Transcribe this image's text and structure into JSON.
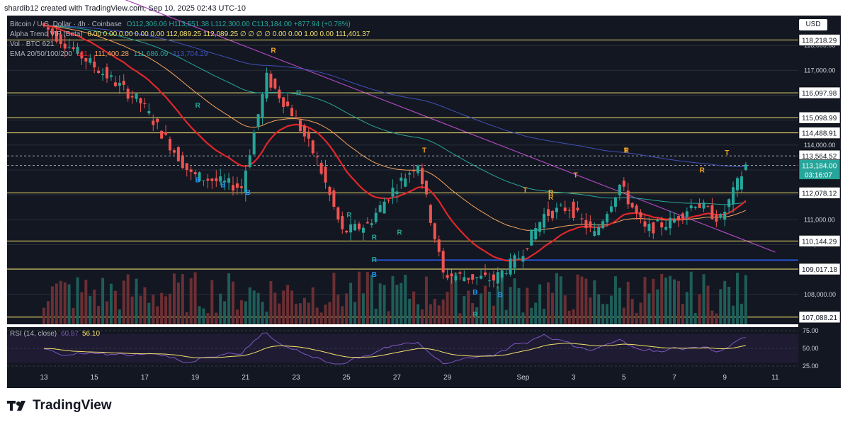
{
  "header": {
    "attribution": "shardib12 created with TradingView.com, Sep 10, 2025 02:43 UTC-10",
    "symbol": "Bitcoin / U.S. Dollar · 4h · Coinbase",
    "ohlc": "O112,306.06  H113,551.38  L112,300.00  C113,184.00  +877.94 (+0.78%)",
    "indicator1": "Alpha Trend VIP (Beta)",
    "indicator1_values": "0.00  0.00  0.00  0.00  0.00  112,089.25  112,089.25  ∅ ∅ ∅ ∅  0.00  0.00  1.00  0.00  111,401.37",
    "volume": "Vol · BTC  621",
    "ema": "EMA 20/50/100/200",
    "ema_values": [
      "111,",
      "111,400.28",
      "111,686.09",
      "113,704.29"
    ]
  },
  "currency_button": "USD",
  "brand": "TradingView",
  "colors": {
    "background": "#131722",
    "frame": "#ffffff",
    "up": "#26a69a",
    "down": "#ef5350",
    "level_line": "#f5e36b",
    "trendline": "#ab47bc",
    "support_blue": "#2962ff",
    "ema20": "#e0272b",
    "ema50": "#f7a35c",
    "ema100": "#26a69a",
    "ema200": "#3f51b5",
    "rsi": "#7e57c2",
    "rsi_ma": "#f5e36b",
    "alpha_trend_up": "#4caf50",
    "alpha_trend_down": "#ff9800"
  },
  "chart_data": {
    "type": "candlestick",
    "timeframe": "4h",
    "price_axis": {
      "ylim": [
        106800,
        119200
      ],
      "ticks": [
        108000,
        109000,
        110000,
        111000,
        112000,
        113000,
        114000,
        115000,
        116000,
        117000,
        118000
      ],
      "tick_labels": [
        "108,000.00",
        "109,000.00",
        "110,000.00",
        "111,000.00",
        "112,000.00",
        "113,000.00",
        "114,000.00",
        "115,000.00",
        "116,000.00",
        "117,000.00",
        "118,000.00"
      ]
    },
    "x_axis": {
      "tick_labels": [
        "13",
        "15",
        "17",
        "19",
        "21",
        "23",
        "25",
        "27",
        "29",
        "Sep",
        "3",
        "5",
        "7",
        "9",
        "11"
      ]
    },
    "horizontal_levels": [
      {
        "price": 118218.29,
        "label": "118,218.29"
      },
      {
        "price": 116097.98,
        "label": "116,097.98"
      },
      {
        "price": 115098.99,
        "label": "115,098.99"
      },
      {
        "price": 114488.91,
        "label": "114,488.91"
      },
      {
        "price": 112078.12,
        "label": "112,078.12"
      },
      {
        "price": 110144.29,
        "label": "110,144.29"
      },
      {
        "price": 109017.18,
        "label": "109,017.18"
      },
      {
        "price": 107088.21,
        "label": "107,088.21"
      }
    ],
    "price_labels": [
      {
        "price": 113564.52,
        "label": "113,564.52"
      },
      {
        "price": 113184.0,
        "label": "113,184.00"
      }
    ],
    "countdown": "03:16:07",
    "support_line": {
      "price": 109380
    },
    "trendline": {
      "from": {
        "x": "Aug 12",
        "price": 121500
      },
      "to": {
        "x": "Sep 11",
        "price": 109700
      }
    },
    "key_points": [
      {
        "x": "Aug 13",
        "price": 118900
      },
      {
        "x": "Aug 15",
        "price": 117300
      },
      {
        "x": "Aug 17",
        "price": 115700
      },
      {
        "x": "Aug 19",
        "price": 112800
      },
      {
        "x": "Aug 21",
        "price": 112300
      },
      {
        "x": "Aug 22",
        "price": 116700
      },
      {
        "x": "Aug 23",
        "price": 115300
      },
      {
        "x": "Aug 24",
        "price": 113400
      },
      {
        "x": "Aug 25",
        "price": 110500
      },
      {
        "x": "Aug 26",
        "price": 110800
      },
      {
        "x": "Aug 27",
        "price": 112200
      },
      {
        "x": "Aug 28",
        "price": 113300
      },
      {
        "x": "Aug 29",
        "price": 108800
      },
      {
        "x": "Aug 31",
        "price": 108600
      },
      {
        "x": "Sep 1",
        "price": 109500
      },
      {
        "x": "Sep 2",
        "price": 111200
      },
      {
        "x": "Sep 3",
        "price": 111500
      },
      {
        "x": "Sep 4",
        "price": 110400
      },
      {
        "x": "Sep 5",
        "price": 112400
      },
      {
        "x": "Sep 6",
        "price": 110600
      },
      {
        "x": "Sep 7",
        "price": 110900
      },
      {
        "x": "Sep 8",
        "price": 111700
      },
      {
        "x": "Sep 9",
        "price": 111000
      },
      {
        "x": "Sep 10",
        "price": 113184
      }
    ],
    "signal_markers": [
      {
        "text": "R",
        "color": "orange",
        "x": "Aug 22",
        "price": 117700
      },
      {
        "text": "T",
        "color": "orange",
        "x": "Aug 28",
        "price": 113700
      },
      {
        "text": "T",
        "color": "orange",
        "x": "Sep 1",
        "price": 112100
      },
      {
        "text": "R",
        "color": "orange",
        "x": "Sep 2",
        "price": 112000
      },
      {
        "text": "T",
        "color": "orange",
        "x": "Sep 3",
        "price": 112700
      },
      {
        "text": "T",
        "color": "orange",
        "x": "Sep 5",
        "price": 113700
      },
      {
        "text": "R",
        "color": "orange",
        "x": "Sep 8",
        "price": 112900
      },
      {
        "text": "T",
        "color": "orange",
        "x": "Sep 9",
        "price": 113600
      },
      {
        "text": "R",
        "color": "green",
        "x": "Aug 19",
        "price": 115500
      },
      {
        "text": "B",
        "color": "blue",
        "x": "Aug 19",
        "price": 112500
      },
      {
        "text": "B",
        "color": "blue",
        "x": "Aug 20",
        "price": 112300
      },
      {
        "text": "B",
        "color": "blue",
        "x": "Aug 21",
        "price": 112000
      },
      {
        "text": "R",
        "color": "green",
        "x": "Aug 23",
        "price": 116000
      },
      {
        "text": "R",
        "color": "green",
        "x": "Aug 25",
        "price": 111100
      },
      {
        "text": "R",
        "color": "green",
        "x": "Aug 26",
        "price": 110200
      },
      {
        "text": "R",
        "color": "green",
        "x": "Aug 26",
        "price": 109300
      },
      {
        "text": "B",
        "color": "blue",
        "x": "Aug 26",
        "price": 108700
      },
      {
        "text": "R",
        "color": "green",
        "x": "Aug 27",
        "price": 110400
      },
      {
        "text": "R",
        "color": "green",
        "x": "Aug 30",
        "price": 107100
      },
      {
        "text": "B",
        "color": "blue",
        "x": "Aug 30",
        "price": 108000
      },
      {
        "text": "B",
        "color": "blue",
        "x": "Aug 31",
        "price": 107900
      },
      {
        "text": "R",
        "color": "orange",
        "x": "Sep 2",
        "price": 111800
      },
      {
        "text": "R",
        "color": "orange",
        "x": "Sep 5",
        "price": 113700
      }
    ],
    "rsi": {
      "label": "RSI (14, close)",
      "value": "60.87",
      "ma_value": "56.10",
      "ylim": [
        20,
        80
      ],
      "tick_labels": [
        "75.00",
        "50.00",
        "25.00"
      ],
      "band": [
        30,
        70
      ]
    }
  }
}
